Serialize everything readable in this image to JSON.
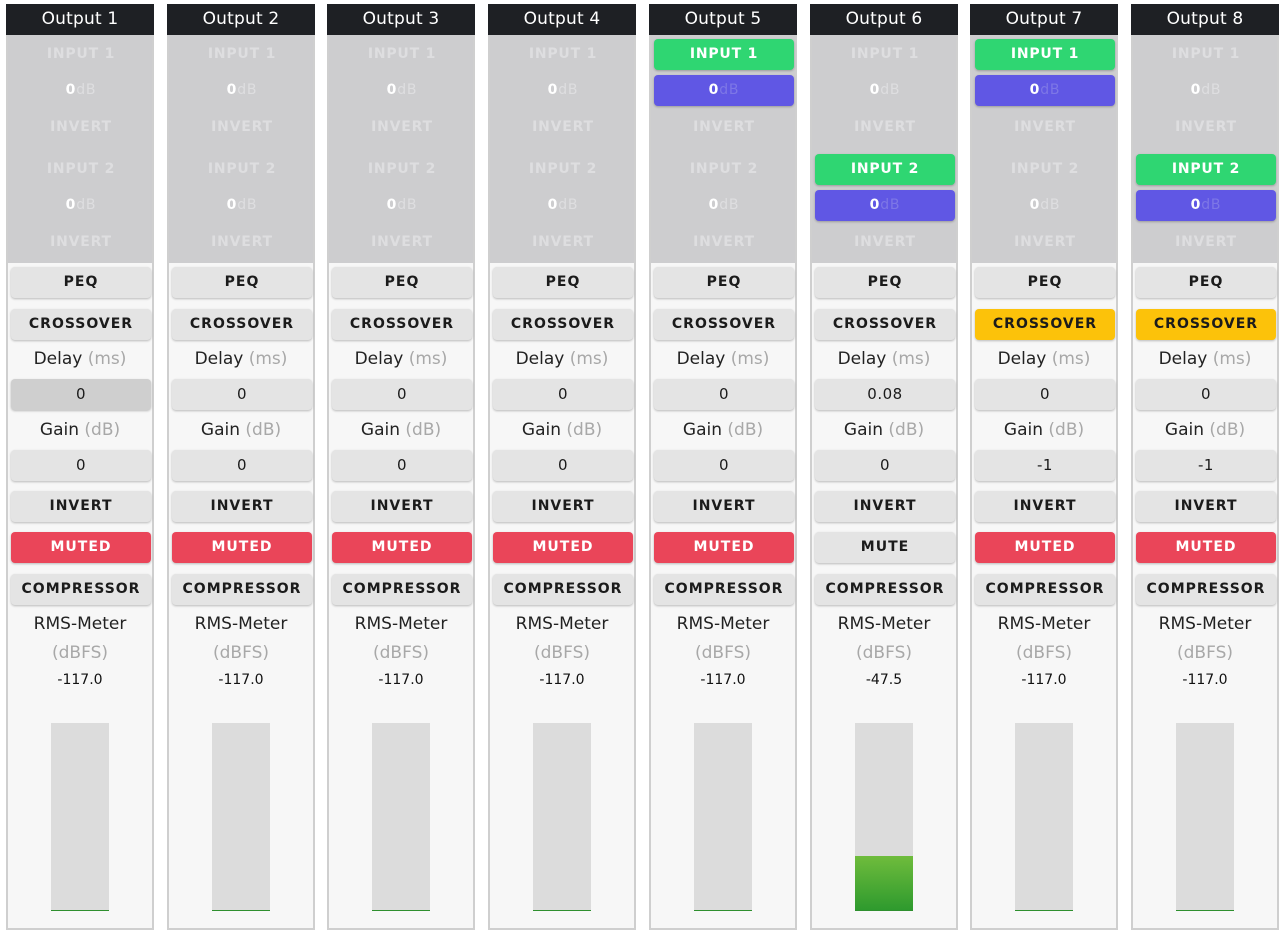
{
  "labels": {
    "input1": "INPUT 1",
    "input2": "INPUT 2",
    "db_unit": "dB",
    "invert": "INVERT",
    "peq": "PEQ",
    "crossover": "CROSSOVER",
    "delay": "Delay",
    "delay_unit": "(ms)",
    "gain": "Gain",
    "gain_unit": "(dB)",
    "compressor": "COMPRESSOR",
    "rms_meter": "RMS-Meter",
    "rms_unit": "(dBFS)"
  },
  "colors": {
    "header": "#1e2024",
    "routing_active_input": "#2fd672",
    "routing_active_gain": "#6057e4",
    "muted": "#ea4559",
    "crossover_active": "#fcc20a",
    "meter_fill": "#4faa34"
  },
  "outputs": [
    {
      "name": "Output 1",
      "in1_active": false,
      "in1_gain": "0",
      "in2_active": false,
      "in2_gain": "0",
      "crossover_active": false,
      "delay": "0",
      "delay_focused": true,
      "gain": "0",
      "mute_label": "MUTED",
      "muted": true,
      "rms": "-117.0",
      "meter_level": 0.0
    },
    {
      "name": "Output 2",
      "in1_active": false,
      "in1_gain": "0",
      "in2_active": false,
      "in2_gain": "0",
      "crossover_active": false,
      "delay": "0",
      "delay_focused": false,
      "gain": "0",
      "mute_label": "MUTED",
      "muted": true,
      "rms": "-117.0",
      "meter_level": 0.0
    },
    {
      "name": "Output 3",
      "in1_active": false,
      "in1_gain": "0",
      "in2_active": false,
      "in2_gain": "0",
      "crossover_active": false,
      "delay": "0",
      "delay_focused": false,
      "gain": "0",
      "mute_label": "MUTED",
      "muted": true,
      "rms": "-117.0",
      "meter_level": 0.0
    },
    {
      "name": "Output 4",
      "in1_active": false,
      "in1_gain": "0",
      "in2_active": false,
      "in2_gain": "0",
      "crossover_active": false,
      "delay": "0",
      "delay_focused": false,
      "gain": "0",
      "mute_label": "MUTED",
      "muted": true,
      "rms": "-117.0",
      "meter_level": 0.0
    },
    {
      "name": "Output 5",
      "in1_active": true,
      "in1_gain": "0",
      "in2_active": false,
      "in2_gain": "0",
      "crossover_active": false,
      "delay": "0",
      "delay_focused": false,
      "gain": "0",
      "mute_label": "MUTED",
      "muted": true,
      "rms": "-117.0",
      "meter_level": 0.0
    },
    {
      "name": "Output 6",
      "in1_active": false,
      "in1_gain": "0",
      "in2_active": true,
      "in2_gain": "0",
      "crossover_active": false,
      "delay": "0.08",
      "delay_focused": false,
      "gain": "0",
      "mute_label": "MUTE",
      "muted": false,
      "rms": "-47.5",
      "meter_level": 0.29
    },
    {
      "name": "Output 7",
      "in1_active": true,
      "in1_gain": "0",
      "in2_active": false,
      "in2_gain": "0",
      "crossover_active": true,
      "delay": "0",
      "delay_focused": false,
      "gain": "-1",
      "mute_label": "MUTED",
      "muted": true,
      "rms": "-117.0",
      "meter_level": 0.0
    },
    {
      "name": "Output 8",
      "in1_active": false,
      "in1_gain": "0",
      "in2_active": true,
      "in2_gain": "0",
      "crossover_active": true,
      "delay": "0",
      "delay_focused": false,
      "gain": "-1",
      "mute_label": "MUTED",
      "muted": true,
      "rms": "-117.0",
      "meter_level": 0.0
    }
  ]
}
